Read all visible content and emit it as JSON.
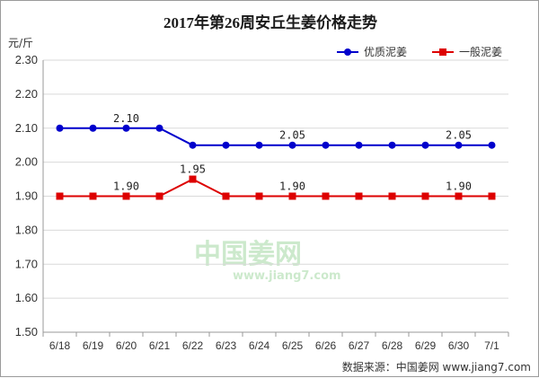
{
  "chart_data": {
    "type": "line",
    "title": "2017年第26周安丘生姜价格走势",
    "ylabel": "元/斤",
    "ylim": [
      1.5,
      2.3
    ],
    "yticks": [
      "2.30",
      "2.20",
      "2.10",
      "2.00",
      "1.90",
      "1.80",
      "1.70",
      "1.60",
      "1.50"
    ],
    "categories": [
      "6/18",
      "6/19",
      "6/20",
      "6/21",
      "6/22",
      "6/23",
      "6/24",
      "6/25",
      "6/26",
      "6/27",
      "6/28",
      "6/29",
      "6/30",
      "7/1"
    ],
    "grid": true,
    "legend_position": "top-right",
    "series": [
      {
        "name": "优质泥姜",
        "color": "#0000cc",
        "marker": "circle",
        "values": [
          2.1,
          2.1,
          2.1,
          2.1,
          2.05,
          2.05,
          2.05,
          2.05,
          2.05,
          2.05,
          2.05,
          2.05,
          2.05,
          2.05
        ],
        "labels": [
          {
            "index": 2,
            "text": "2.10"
          },
          {
            "index": 7,
            "text": "2.05"
          },
          {
            "index": 12,
            "text": "2.05"
          }
        ]
      },
      {
        "name": "一般泥姜",
        "color": "#dd0000",
        "marker": "square",
        "values": [
          1.9,
          1.9,
          1.9,
          1.9,
          1.95,
          1.9,
          1.9,
          1.9,
          1.9,
          1.9,
          1.9,
          1.9,
          1.9,
          1.9
        ],
        "labels": [
          {
            "index": 2,
            "text": "1.90"
          },
          {
            "index": 4,
            "text": "1.95"
          },
          {
            "index": 7,
            "text": "1.90"
          },
          {
            "index": 12,
            "text": "1.90"
          }
        ]
      }
    ]
  },
  "watermark": {
    "brand": "中国姜网",
    "url": "www.jiang7.com"
  },
  "source": "数据来源：中国姜网 www.jiang7.com"
}
